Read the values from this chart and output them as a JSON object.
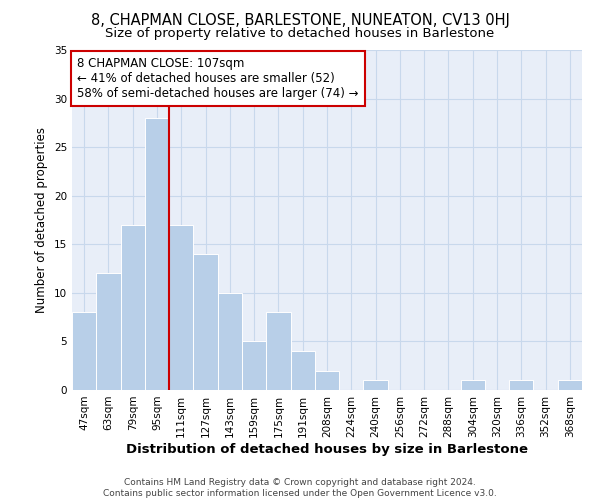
{
  "title": "8, CHAPMAN CLOSE, BARLESTONE, NUNEATON, CV13 0HJ",
  "subtitle": "Size of property relative to detached houses in Barlestone",
  "xlabel": "Distribution of detached houses by size in Barlestone",
  "ylabel": "Number of detached properties",
  "categories": [
    "47sqm",
    "63sqm",
    "79sqm",
    "95sqm",
    "111sqm",
    "127sqm",
    "143sqm",
    "159sqm",
    "175sqm",
    "191sqm",
    "208sqm",
    "224sqm",
    "240sqm",
    "256sqm",
    "272sqm",
    "288sqm",
    "304sqm",
    "320sqm",
    "336sqm",
    "352sqm",
    "368sqm"
  ],
  "values": [
    8,
    12,
    17,
    28,
    17,
    14,
    10,
    5,
    8,
    4,
    2,
    0,
    1,
    0,
    0,
    0,
    1,
    0,
    1,
    0,
    1
  ],
  "bar_color": "#b8cfe8",
  "vline_color": "#cc0000",
  "vline_index": 4,
  "annotation_text": "8 CHAPMAN CLOSE: 107sqm\n← 41% of detached houses are smaller (52)\n58% of semi-detached houses are larger (74) →",
  "annotation_box_facecolor": "#ffffff",
  "annotation_box_edgecolor": "#cc0000",
  "ylim": [
    0,
    35
  ],
  "yticks": [
    0,
    5,
    10,
    15,
    20,
    25,
    30,
    35
  ],
  "footer_text": "Contains HM Land Registry data © Crown copyright and database right 2024.\nContains public sector information licensed under the Open Government Licence v3.0.",
  "grid_color": "#c8d8ec",
  "bg_color": "#e8eef8",
  "title_fontsize": 10.5,
  "subtitle_fontsize": 9.5,
  "xlabel_fontsize": 9.5,
  "ylabel_fontsize": 8.5,
  "tick_fontsize": 7.5,
  "annotation_fontsize": 8.5,
  "footer_fontsize": 6.5
}
